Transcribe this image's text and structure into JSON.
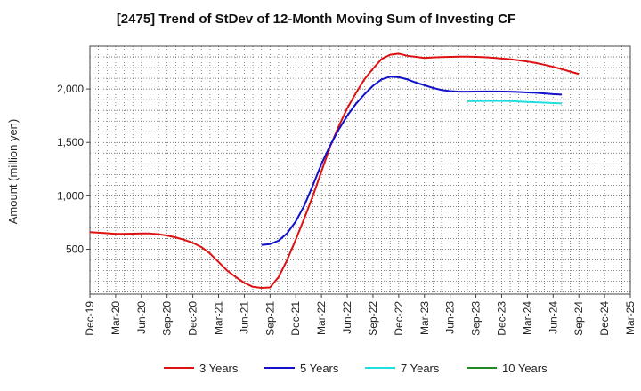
{
  "chart_data": {
    "type": "line",
    "title": "[2475]  Trend of StDev of 12-Month Moving Sum of Investing CF",
    "xlabel": "",
    "ylabel": "Amount (million yen)",
    "x_tick_labels": [
      "Dec-19",
      "Mar-20",
      "Jun-20",
      "Sep-20",
      "Dec-20",
      "Mar-21",
      "Jun-21",
      "Sep-21",
      "Dec-21",
      "Mar-22",
      "Jun-22",
      "Sep-22",
      "Dec-22",
      "Mar-23",
      "Jun-23",
      "Sep-23",
      "Dec-23",
      "Mar-24",
      "Jun-24",
      "Sep-24",
      "Dec-24",
      "Mar-25"
    ],
    "x_tick_labels_extra": [
      "Mar-25"
    ],
    "y_ticks": [
      500,
      1000,
      1500,
      2000
    ],
    "y_tick_labels": [
      "500",
      "1,000",
      "1,500",
      "2,000"
    ],
    "ylim": [
      80,
      2400
    ],
    "grid": true,
    "legend_position": "bottom",
    "series": [
      {
        "name": "3 Years",
        "color": "#dd1111",
        "start": "Dec-19",
        "values": [
          660,
          655,
          650,
          643,
          643,
          645,
          648,
          647,
          640,
          628,
          610,
          588,
          560,
          520,
          460,
          380,
          300,
          240,
          185,
          148,
          138,
          142,
          240,
          400,
          590,
          790,
          1000,
          1230,
          1460,
          1650,
          1820,
          1960,
          2090,
          2190,
          2280,
          2320,
          2330,
          2310,
          2300,
          2290,
          2295,
          2298,
          2300,
          2302,
          2302,
          2300,
          2297,
          2292,
          2285,
          2278,
          2268,
          2257,
          2243,
          2226,
          2207,
          2186,
          2162,
          2140
        ]
      },
      {
        "name": "5 Years",
        "color": "#1111cc",
        "start": "Aug-21",
        "values": [
          540,
          548,
          580,
          650,
          760,
          910,
          1100,
          1300,
          1470,
          1620,
          1750,
          1860,
          1950,
          2030,
          2090,
          2115,
          2110,
          2090,
          2060,
          2035,
          2010,
          1990,
          1980,
          1975,
          1975,
          1976,
          1977,
          1977,
          1976,
          1975,
          1972,
          1968,
          1964,
          1958,
          1952,
          1948
        ]
      },
      {
        "name": "7 Years",
        "color": "#22dddd",
        "start": "Aug-23",
        "values": [
          1885,
          1887,
          1888,
          1888,
          1888,
          1886,
          1882,
          1878,
          1875,
          1872,
          1868,
          1865
        ]
      },
      {
        "name": "10 Years",
        "color": "#228822",
        "start": "Aug-23",
        "values": []
      }
    ]
  }
}
